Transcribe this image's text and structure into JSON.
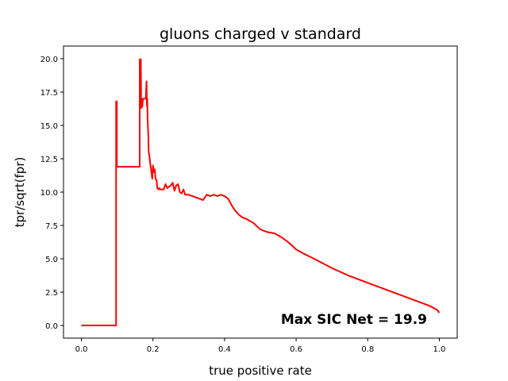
{
  "chart_data": {
    "type": "line",
    "title": "gluons charged v standard",
    "xlabel": "true positive rate",
    "ylabel": "tpr/sqrt(fpr)",
    "xlim": [
      -0.05,
      1.05
    ],
    "ylim": [
      -0.95,
      20.95
    ],
    "xticks": [
      0.0,
      0.2,
      0.4,
      0.6,
      0.8,
      1.0
    ],
    "xtick_labels": [
      "0.0",
      "0.2",
      "0.4",
      "0.6",
      "0.8",
      "1.0"
    ],
    "yticks": [
      0.0,
      2.5,
      5.0,
      7.5,
      10.0,
      12.5,
      15.0,
      17.5,
      20.0
    ],
    "ytick_labels": [
      "0.0",
      "2.5",
      "5.0",
      "7.5",
      "10.0",
      "12.5",
      "15.0",
      "17.5",
      "20.0"
    ],
    "grid": false,
    "annotation": "Max SIC Net = 19.9",
    "annotation_position": "bottom-right",
    "series": [
      {
        "color": "#ff0000",
        "x": [
          0.0,
          0.097,
          0.097,
          0.099,
          0.099,
          0.163,
          0.163,
          0.166,
          0.167,
          0.168,
          0.17,
          0.172,
          0.174,
          0.176,
          0.178,
          0.18,
          0.182,
          0.183,
          0.184,
          0.185,
          0.186,
          0.187,
          0.188,
          0.19,
          0.192,
          0.195,
          0.198,
          0.2,
          0.203,
          0.205,
          0.207,
          0.21,
          0.212,
          0.215,
          0.218,
          0.22,
          0.225,
          0.23,
          0.235,
          0.24,
          0.25,
          0.255,
          0.26,
          0.265,
          0.27,
          0.275,
          0.28,
          0.285,
          0.29,
          0.3,
          0.31,
          0.32,
          0.33,
          0.34,
          0.35,
          0.36,
          0.37,
          0.38,
          0.39,
          0.4,
          0.41,
          0.42,
          0.43,
          0.44,
          0.45,
          0.46,
          0.48,
          0.5,
          0.52,
          0.54,
          0.56,
          0.58,
          0.6,
          0.62,
          0.65,
          0.7,
          0.75,
          0.8,
          0.85,
          0.9,
          0.95,
          0.97,
          0.985,
          0.995,
          1.0
        ],
        "y": [
          0.0,
          0.0,
          16.8,
          16.8,
          11.9,
          11.9,
          19.95,
          19.95,
          16.3,
          17.0,
          16.4,
          17.0,
          17.0,
          17.0,
          17.0,
          17.0,
          18.3,
          16.5,
          17.0,
          15.4,
          14.8,
          14.3,
          13.0,
          12.7,
          12.2,
          11.6,
          11.0,
          12.0,
          11.5,
          11.7,
          11.0,
          10.9,
          10.3,
          10.2,
          10.3,
          10.2,
          10.2,
          10.2,
          10.6,
          10.3,
          10.5,
          10.7,
          10.1,
          10.5,
          10.6,
          10.0,
          9.9,
          10.2,
          9.8,
          9.8,
          9.7,
          9.6,
          9.5,
          9.4,
          9.8,
          9.7,
          9.8,
          9.7,
          9.8,
          9.7,
          9.5,
          9.0,
          8.6,
          8.3,
          8.1,
          8.0,
          7.7,
          7.2,
          7.0,
          6.9,
          6.6,
          6.2,
          5.7,
          5.4,
          5.0,
          4.3,
          3.7,
          3.2,
          2.7,
          2.2,
          1.7,
          1.5,
          1.3,
          1.15,
          0.95
        ]
      }
    ]
  }
}
